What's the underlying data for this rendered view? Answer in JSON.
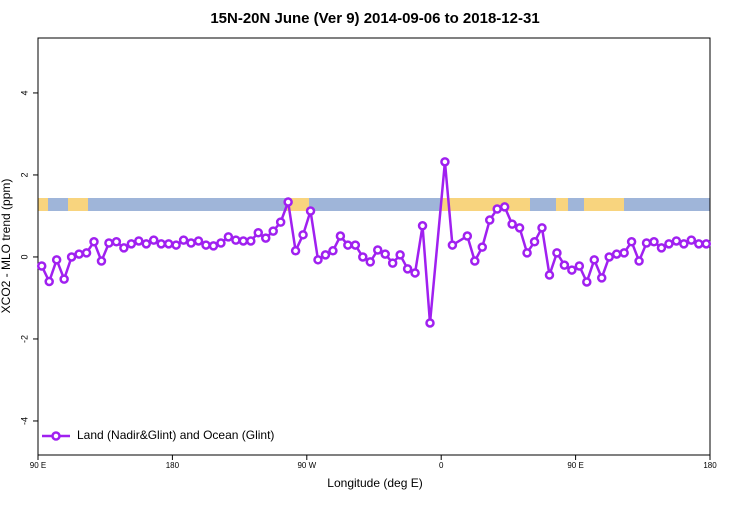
{
  "chart_data": {
    "type": "line",
    "title": "15N-20N June (Ver 9)   2014-09-06 to 2018-12-31",
    "x_label": "Longitude (deg E)",
    "y_label": "XCO2 - MLO trend (ppm)",
    "xlim": [
      90,
      540
    ],
    "xticks": [
      {
        "value": 90,
        "label": "90 E"
      },
      180,
      {
        "value": 270,
        "label": "90 W"
      },
      {
        "value": 360,
        "label": "0"
      },
      {
        "value": 450,
        "label": "90 E"
      },
      {
        "value": 540,
        "label": "180"
      }
    ],
    "ylim": [
      -4.83,
      5.34
    ],
    "yticks": [
      -4,
      -2,
      0,
      2,
      4
    ],
    "legend_position": "bottom-left",
    "series": [
      {
        "name": "Land (Nadir&Glint) and Ocean (Glint)",
        "color": "#a020f0",
        "x": [
          92.5,
          97.5,
          102.5,
          107.5,
          112.5,
          117.5,
          122.5,
          127.5,
          132.5,
          137.5,
          142.5,
          147.5,
          152.5,
          157.5,
          162.5,
          167.5,
          172.5,
          177.5,
          182.5,
          187.5,
          192.5,
          197.5,
          202.5,
          207.5,
          212.5,
          217.5,
          222.5,
          227.5,
          232.5,
          237.5,
          242.5,
          247.5,
          252.5,
          257.5,
          262.5,
          267.5,
          272.5,
          277.5,
          282.5,
          287.5,
          292.5,
          297.5,
          302.5,
          307.5,
          312.5,
          317.5,
          322.5,
          327.5,
          332.5,
          337.5,
          342.5,
          347.5,
          352.5,
          362.5,
          367.5,
          377.5,
          382.5,
          387.5,
          392.5,
          397.5,
          402.5,
          407.5,
          412.5,
          417.5,
          422.5,
          427.5,
          432.5,
          437.5,
          442.5,
          447.5,
          452.5,
          457.5,
          462.5,
          467.5,
          472.5,
          477.5,
          482.5,
          487.5,
          492.5,
          497.5,
          502.5,
          507.5,
          512.5,
          517.5,
          522.5,
          527.5,
          532.5,
          537.5
        ],
        "values": [
          -0.22,
          -0.6,
          -0.07,
          -0.54,
          0,
          0.07,
          0.1,
          0.37,
          -0.1,
          0.34,
          0.37,
          0.22,
          0.32,
          0.39,
          0.32,
          0.41,
          0.32,
          0.32,
          0.29,
          0.41,
          0.34,
          0.39,
          0.29,
          0.27,
          0.34,
          0.49,
          0.41,
          0.39,
          0.39,
          0.59,
          0.46,
          0.63,
          0.85,
          1.34,
          0.15,
          0.54,
          1.12,
          -0.07,
          0.05,
          0.15,
          0.51,
          0.29,
          0.29,
          0,
          -0.12,
          0.17,
          0.07,
          -0.15,
          0.05,
          -0.29,
          -0.39,
          0.76,
          -1.61,
          2.32,
          0.29,
          0.51,
          -0.1,
          0.24,
          0.9,
          1.17,
          1.22,
          0.8,
          0.71,
          0.1,
          0.37,
          0.71,
          -0.44,
          0.1,
          -0.2,
          -0.32,
          -0.22,
          -0.61,
          -0.07,
          -0.51,
          0,
          0.07,
          0.1,
          0.37,
          -0.1,
          0.34,
          0.37,
          0.22,
          0.32,
          0.39,
          0.32,
          0.41,
          0.32,
          0.32
        ]
      }
    ]
  }
}
